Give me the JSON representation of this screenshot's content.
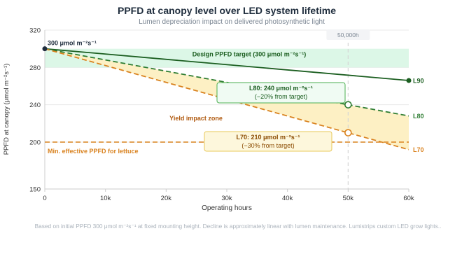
{
  "chart_data": {
    "type": "line",
    "title": "PPFD at canopy level over LED system lifetime",
    "subtitle": "Lumen depreciation impact on delivered photosynthetic light",
    "xlabel": "Operating hours",
    "ylabel": "PPFD at canopy (μmol m⁻²s⁻¹)",
    "xlim": [
      0,
      60000
    ],
    "ylim": [
      150,
      320
    ],
    "y_break_visible": true,
    "x_ticks": [
      {
        "value": 0,
        "label": "0"
      },
      {
        "value": 10000,
        "label": "10k"
      },
      {
        "value": 20000,
        "label": "20k"
      },
      {
        "value": 30000,
        "label": "30k"
      },
      {
        "value": 40000,
        "label": "40k"
      },
      {
        "value": 50000,
        "label": "50k"
      },
      {
        "value": 60000,
        "label": "60k"
      }
    ],
    "y_ticks": [
      {
        "value": 150,
        "label": "150"
      },
      {
        "value": 200,
        "label": "200"
      },
      {
        "value": 240,
        "label": "240"
      },
      {
        "value": 280,
        "label": "280"
      },
      {
        "value": 320,
        "label": "320"
      }
    ],
    "grid": "horizontal",
    "series": [
      {
        "name": "L90",
        "x": [
          0,
          60000
        ],
        "y": [
          300,
          266
        ],
        "color": "#1b5e20",
        "dash": "solid",
        "end_marker": true
      },
      {
        "name": "L80",
        "x": [
          0,
          60000
        ],
        "y": [
          300,
          228
        ],
        "color": "#2e7d32",
        "dash": "dashed"
      },
      {
        "name": "L70",
        "x": [
          0,
          60000
        ],
        "y": [
          300,
          192
        ],
        "color": "#d9821f",
        "dash": "dashed"
      }
    ],
    "start_point": {
      "x": 0,
      "y": 300,
      "label": "300 μmol m⁻²s⁻¹"
    },
    "target_band": {
      "y_low": 280,
      "y_high": 300,
      "label": "Design PPFD target (300 μmol m⁻²s⁻¹)",
      "color": "#dcf7e7"
    },
    "threshold": {
      "y": 200,
      "label": "Min. effective PPFD for lettuce",
      "color": "#d9821f"
    },
    "reference_line": {
      "x": 50000,
      "label": "50,000h"
    },
    "zone_label": "Yield impact zone",
    "callouts": [
      {
        "series": "L80",
        "x": 50000,
        "y": 240,
        "line1": "L80: 240 μmol m⁻²s⁻¹",
        "line2": "(−20% from target)"
      },
      {
        "series": "L70",
        "x": 50000,
        "y": 210,
        "line1": "L70: 210 μmol m⁻²s⁻¹",
        "line2": "(−30% from target)"
      }
    ],
    "footnote": "Based on initial PPFD 300 μmol m⁻²s⁻¹ at fixed mounting height. Decline is approximately linear with lumen maintenance. Lumistrips custom LED grow lights.."
  },
  "colors": {
    "title": "#1f2d3d",
    "subtitle": "#7a8592",
    "axis_text": "#333333",
    "grid": "#e8e8e8",
    "zone_fill": "#fdf0c4",
    "footnote": "#aab2bb",
    "callout_green_fill": "#f0fbf3",
    "callout_green_border": "#4caf50",
    "callout_orange_fill": "#fdf7dc",
    "callout_orange_border": "#e8c85a",
    "zone_text": "#b05a10"
  }
}
